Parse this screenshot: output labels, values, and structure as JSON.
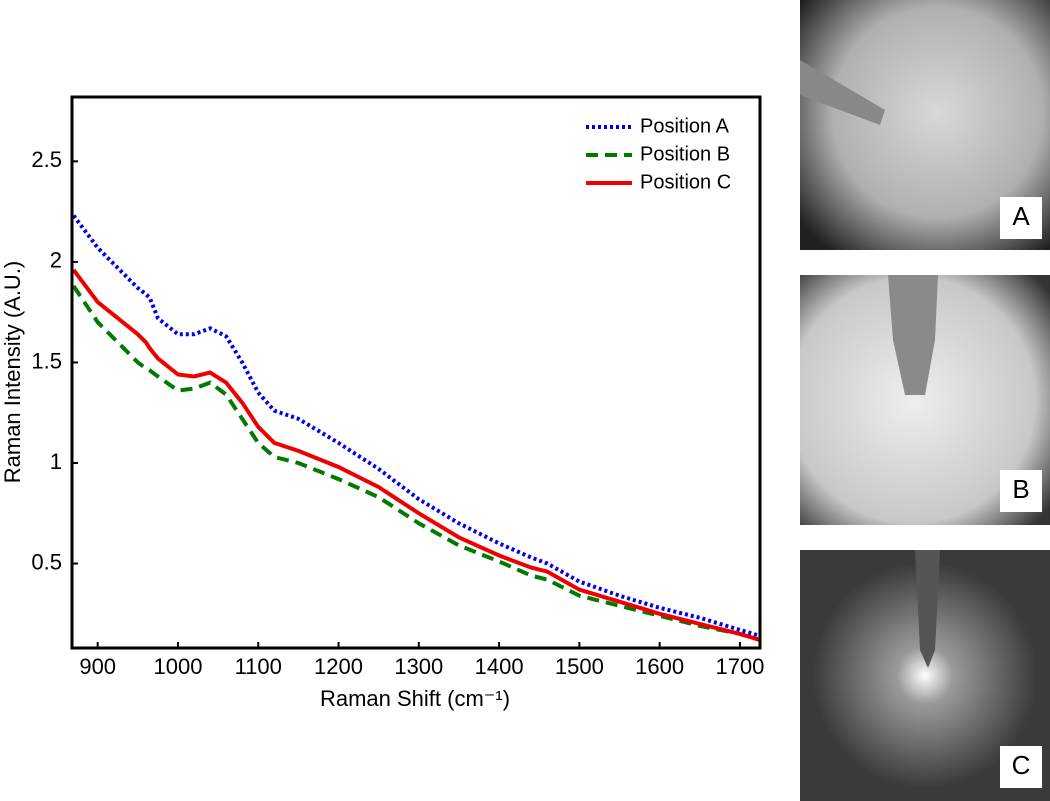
{
  "chart_data": {
    "type": "line",
    "x_label": "Raman Shift (cm⁻¹)",
    "y_label": "Raman Intensity (A.U.)",
    "x": [
      870,
      900,
      925,
      950,
      960,
      965,
      975,
      1000,
      1020,
      1040,
      1060,
      1080,
      1100,
      1120,
      1150,
      1200,
      1250,
      1300,
      1350,
      1400,
      1440,
      1460,
      1500,
      1550,
      1600,
      1650,
      1700,
      1725
    ],
    "series": [
      {
        "name": "Position A",
        "color": "#0000ee",
        "linestyle": "dotted",
        "values": [
          2.23,
          2.07,
          1.97,
          1.87,
          1.84,
          1.82,
          1.72,
          1.64,
          1.64,
          1.67,
          1.63,
          1.5,
          1.35,
          1.26,
          1.22,
          1.1,
          0.97,
          0.82,
          0.7,
          0.6,
          0.53,
          0.5,
          0.41,
          0.34,
          0.28,
          0.23,
          0.17,
          0.14
        ]
      },
      {
        "name": "Position B",
        "color": "#007a00",
        "linestyle": "dashed",
        "values": [
          1.88,
          1.7,
          1.6,
          1.5,
          1.47,
          1.46,
          1.43,
          1.36,
          1.37,
          1.4,
          1.34,
          1.22,
          1.1,
          1.03,
          1.0,
          0.92,
          0.83,
          0.7,
          0.59,
          0.51,
          0.44,
          0.42,
          0.34,
          0.29,
          0.24,
          0.19,
          0.15,
          0.12
        ]
      },
      {
        "name": "Position C",
        "color": "#ee0000",
        "linestyle": "solid",
        "values": [
          1.96,
          1.8,
          1.72,
          1.64,
          1.6,
          1.57,
          1.52,
          1.44,
          1.43,
          1.45,
          1.4,
          1.3,
          1.18,
          1.1,
          1.06,
          0.98,
          0.88,
          0.75,
          0.63,
          0.54,
          0.48,
          0.46,
          0.37,
          0.31,
          0.25,
          0.2,
          0.15,
          0.12
        ]
      }
    ],
    "xlim": [
      868,
      1725
    ],
    "ylim": [
      0.08,
      2.82
    ],
    "xticks": [
      900,
      1000,
      1100,
      1200,
      1300,
      1400,
      1500,
      1600,
      1700
    ],
    "yticks": [
      0.5,
      1,
      1.5,
      2,
      2.5
    ],
    "legend": "upper right"
  },
  "panels": [
    {
      "label": "A"
    },
    {
      "label": "B"
    },
    {
      "label": "C"
    }
  ]
}
